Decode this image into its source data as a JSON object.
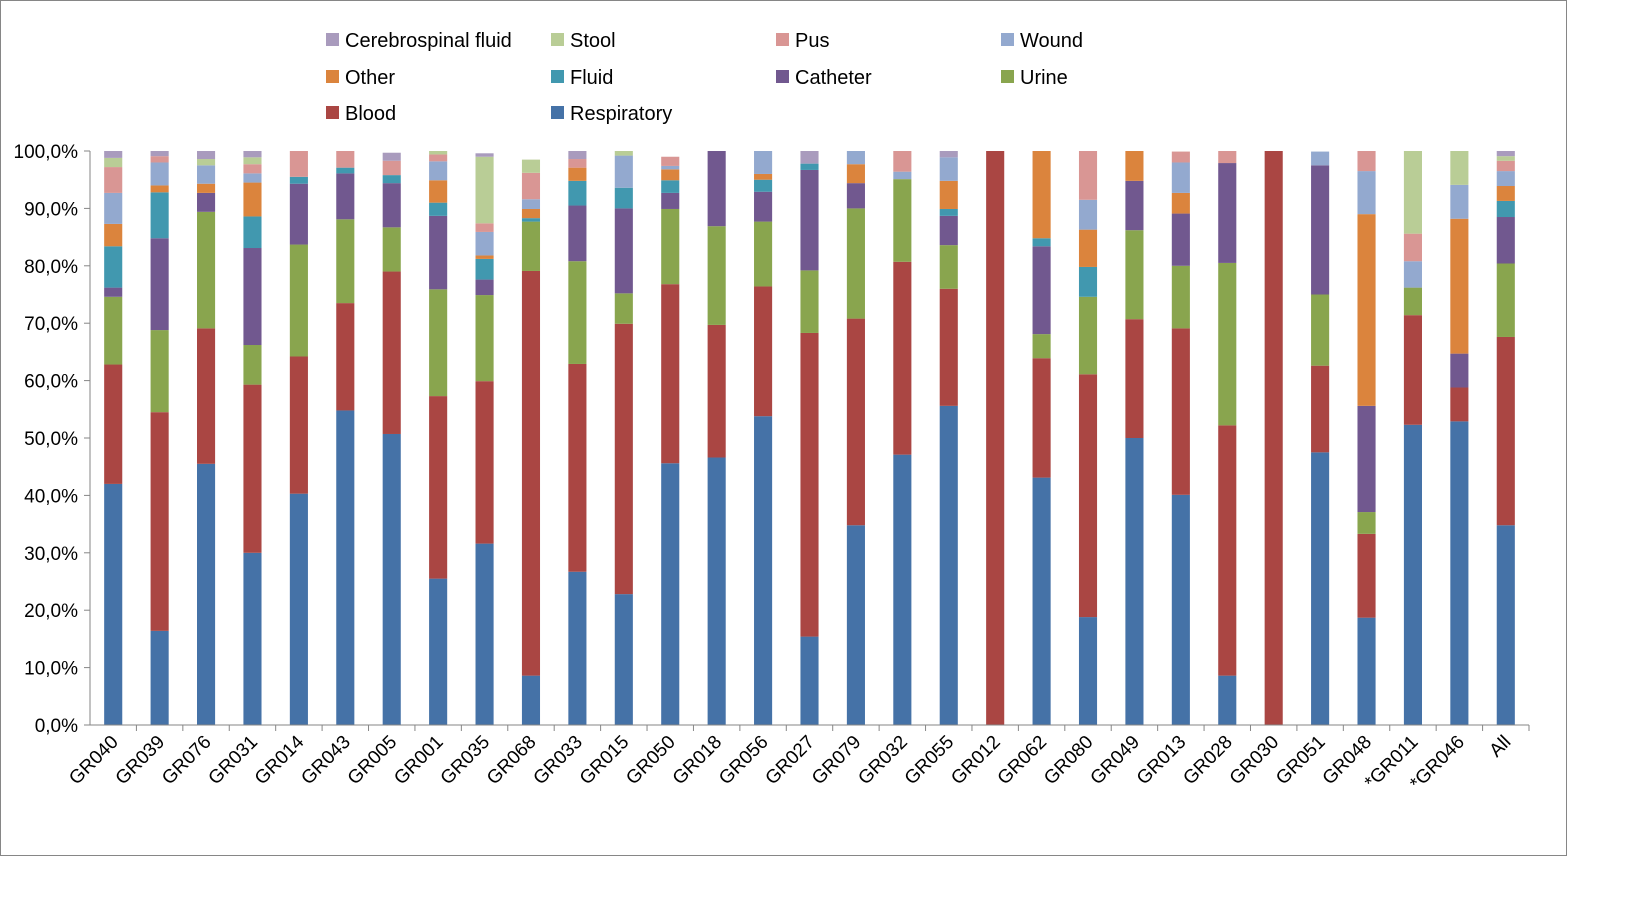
{
  "chart_data": {
    "type": "bar",
    "stacked": true,
    "percent": true,
    "ylim": [
      0,
      100
    ],
    "y_ticks": [
      "0,0%",
      "10,0%",
      "20,0%",
      "30,0%",
      "40,0%",
      "50,0%",
      "60,0%",
      "70,0%",
      "80,0%",
      "90,0%",
      "100,0%"
    ],
    "gridlines": false,
    "legend_position": "top",
    "categories": [
      "GR040",
      "GR039",
      "GR076",
      "GR031",
      "GR014",
      "GR043",
      "GR005",
      "GR001",
      "GR035",
      "GR068",
      "GR033",
      "GR015",
      "GR050",
      "GR018",
      "GR056",
      "GR027",
      "GR079",
      "GR032",
      "GR055",
      "GR012",
      "GR062",
      "GR080",
      "GR049",
      "GR013",
      "GR028",
      "GR030",
      "GR051",
      "GR048",
      "*GR011",
      "*GR046",
      "All"
    ],
    "series": [
      {
        "name": "Respiratory",
        "color": "#4572A7",
        "values": [
          42.0,
          16.4,
          45.5,
          30.0,
          40.3,
          54.8,
          50.7,
          25.5,
          31.6,
          8.6,
          26.7,
          22.8,
          45.6,
          46.6,
          53.8,
          15.4,
          34.8,
          47.1,
          55.6,
          0,
          43.1,
          18.8,
          50.0,
          40.1,
          8.6,
          0,
          47.5,
          18.7,
          52.3,
          52.9,
          34.8
        ]
      },
      {
        "name": "Blood",
        "color": "#AA4643",
        "values": [
          20.8,
          38.1,
          23.6,
          29.3,
          23.9,
          18.7,
          28.3,
          31.8,
          28.3,
          70.5,
          36.2,
          47.1,
          31.2,
          23.1,
          22.6,
          52.9,
          36.0,
          33.6,
          20.4,
          100,
          20.8,
          42.3,
          20.7,
          29.0,
          43.6,
          100,
          15.1,
          14.6,
          19.1,
          5.9,
          32.8
        ]
      },
      {
        "name": "Urine",
        "color": "#89A54E",
        "values": [
          11.8,
          14.3,
          20.3,
          6.9,
          19.5,
          14.6,
          7.7,
          18.6,
          15.0,
          8.6,
          17.9,
          5.3,
          13.1,
          17.2,
          11.3,
          10.9,
          19.2,
          14.4,
          7.6,
          0,
          4.2,
          13.5,
          15.5,
          10.9,
          28.3,
          0,
          12.4,
          3.8,
          4.8,
          0,
          12.8
        ]
      },
      {
        "name": "Catheter",
        "color": "#71588F",
        "values": [
          1.6,
          16.0,
          3.3,
          16.9,
          10.6,
          8.0,
          7.7,
          12.8,
          2.7,
          0,
          9.7,
          14.8,
          2.8,
          13.1,
          5.2,
          17.5,
          4.4,
          0,
          5.1,
          0,
          15.3,
          0,
          8.6,
          9.1,
          17.4,
          0,
          22.5,
          18.5,
          0,
          5.9,
          8.1
        ]
      },
      {
        "name": "Fluid",
        "color": "#4198AF",
        "values": [
          7.2,
          8.0,
          0,
          5.5,
          1.2,
          1.0,
          1.4,
          2.3,
          3.6,
          0.6,
          4.3,
          3.6,
          2.2,
          0,
          2.1,
          1.1,
          0,
          0,
          1.2,
          0,
          1.4,
          5.2,
          0,
          0,
          0,
          0,
          0,
          0,
          0,
          0,
          2.8
        ]
      },
      {
        "name": "Other",
        "color": "#DB843D",
        "values": [
          3.9,
          1.2,
          1.6,
          5.9,
          0,
          0,
          0,
          3.9,
          0.6,
          1.6,
          2.3,
          0,
          1.9,
          0,
          1.0,
          0,
          3.3,
          0,
          4.9,
          0,
          15.2,
          6.5,
          5.2,
          3.6,
          0,
          0,
          0,
          33.4,
          0,
          23.5,
          2.6
        ]
      },
      {
        "name": "Wound",
        "color": "#93A9CF",
        "values": [
          5.4,
          4.0,
          3.2,
          1.6,
          0,
          0,
          0,
          3.3,
          4.1,
          1.7,
          0,
          5.6,
          0.6,
          0,
          4.0,
          0,
          2.3,
          1.3,
          4.1,
          0,
          0,
          5.2,
          0,
          5.3,
          0,
          0,
          2.4,
          7.5,
          4.6,
          5.9,
          2.6
        ]
      },
      {
        "name": "Pus",
        "color": "#D99694",
        "values": [
          4.5,
          1.1,
          0,
          1.6,
          4.5,
          2.9,
          2.5,
          1.2,
          1.5,
          4.6,
          1.5,
          0,
          1.6,
          0,
          0,
          0,
          0,
          3.6,
          0,
          0,
          0,
          8.5,
          0,
          1.9,
          2.1,
          0,
          0,
          3.5,
          4.8,
          0,
          1.8
        ]
      },
      {
        "name": "Stool",
        "color": "#B9CD96",
        "values": [
          1.6,
          0,
          1.1,
          1.2,
          0,
          0,
          0,
          0.8,
          11.6,
          2.3,
          0,
          0.8,
          0,
          0,
          0,
          0,
          0,
          0,
          0,
          0,
          0,
          0,
          0,
          0,
          0,
          0,
          0,
          0,
          14.4,
          5.9,
          0.8
        ]
      },
      {
        "name": "Cerebrospinal fluid",
        "color": "#A99BBD",
        "values": [
          1.2,
          0.9,
          1.4,
          1.7,
          0,
          0,
          1.4,
          0.2,
          0.6,
          0,
          1.4,
          0,
          0,
          0,
          0,
          2.2,
          0,
          0,
          1.1,
          0,
          0,
          0,
          0,
          0,
          0,
          0,
          0,
          0,
          0,
          0,
          0.9
        ]
      }
    ],
    "legend_order": [
      [
        "Cerebrospinal fluid",
        "Stool",
        "Pus",
        "Wound"
      ],
      [
        "Other",
        "Fluid",
        "Catheter",
        "Urine"
      ],
      [
        "Blood",
        "Respiratory"
      ]
    ]
  }
}
